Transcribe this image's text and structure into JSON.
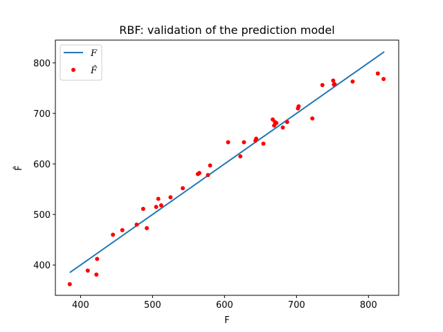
{
  "chart_data": {
    "type": "scatter",
    "title": "RBF: validation of the prediction model",
    "xlabel": "F",
    "ylabel": "F̂",
    "xlim": [
      365,
      842
    ],
    "ylim": [
      340,
      845
    ],
    "xticks": [
      400,
      500,
      600,
      700,
      800
    ],
    "yticks": [
      400,
      500,
      600,
      700,
      800
    ],
    "grid": false,
    "legend_position": "top-left",
    "series": [
      {
        "name": "F",
        "kind": "line",
        "color": "#1f77b4",
        "x": [
          385,
          822
        ],
        "y": [
          385,
          822
        ]
      },
      {
        "name": "F̂",
        "kind": "scatter",
        "color": "#ff0000",
        "points": [
          [
            385,
            362
          ],
          [
            410,
            389
          ],
          [
            422,
            381
          ],
          [
            423,
            412
          ],
          [
            445,
            460
          ],
          [
            458,
            469
          ],
          [
            478,
            480
          ],
          [
            487,
            511
          ],
          [
            492,
            473
          ],
          [
            505,
            515
          ],
          [
            508,
            531
          ],
          [
            512,
            518
          ],
          [
            525,
            534
          ],
          [
            542,
            552
          ],
          [
            563,
            580
          ],
          [
            565,
            582
          ],
          [
            577,
            578
          ],
          [
            580,
            597
          ],
          [
            605,
            643
          ],
          [
            622,
            615
          ],
          [
            627,
            643
          ],
          [
            643,
            646
          ],
          [
            644,
            650
          ],
          [
            654,
            640
          ],
          [
            667,
            688
          ],
          [
            669,
            676
          ],
          [
            670,
            683
          ],
          [
            672,
            681
          ],
          [
            681,
            672
          ],
          [
            687,
            683
          ],
          [
            702,
            710
          ],
          [
            703,
            714
          ],
          [
            722,
            690
          ],
          [
            736,
            756
          ],
          [
            751,
            765
          ],
          [
            752,
            757
          ],
          [
            753,
            758
          ],
          [
            778,
            763
          ],
          [
            813,
            779
          ],
          [
            821,
            768
          ]
        ]
      }
    ]
  }
}
